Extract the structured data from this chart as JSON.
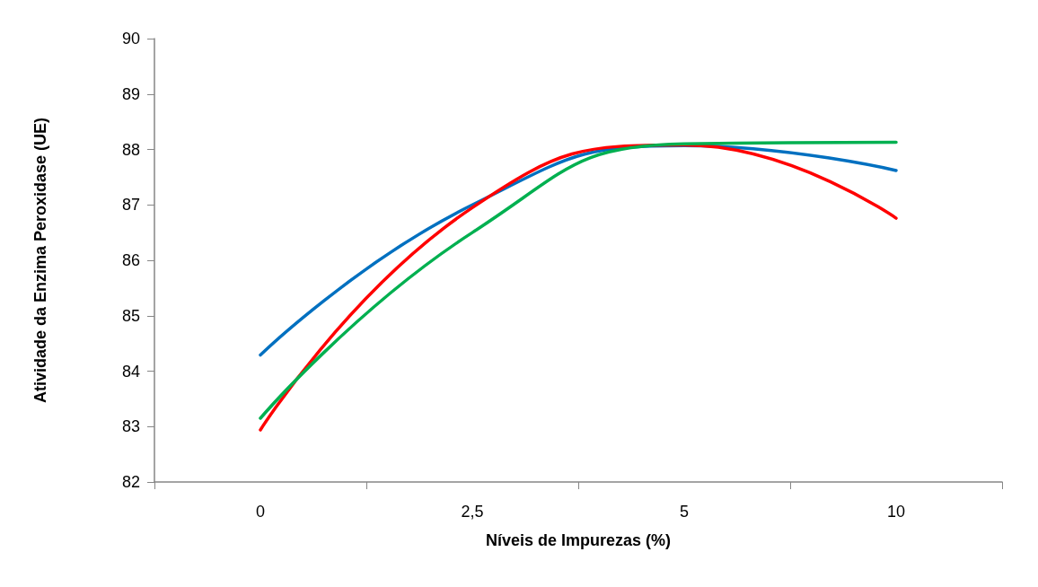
{
  "chart_data": {
    "type": "line",
    "xlabel": "Níveis de Impurezas (%)",
    "ylabel": "Atividade da Enzima Peroxidase (UE)",
    "categories": [
      "0",
      "2,5",
      "5",
      "10"
    ],
    "series": [
      {
        "color": "#0070c0",
        "values": [
          84.29,
          87.0,
          88.07,
          87.62
        ]
      },
      {
        "color": "#ff0000",
        "values": [
          82.94,
          86.95,
          88.08,
          86.76
        ]
      },
      {
        "color": "#00b050",
        "values": [
          83.15,
          86.5,
          88.1,
          88.13
        ]
      }
    ],
    "ylim": [
      82,
      90
    ],
    "yticks": [
      82,
      83,
      84,
      85,
      86,
      87,
      88,
      89,
      90
    ],
    "grid": false,
    "marker": "none",
    "line_style": "solid"
  }
}
